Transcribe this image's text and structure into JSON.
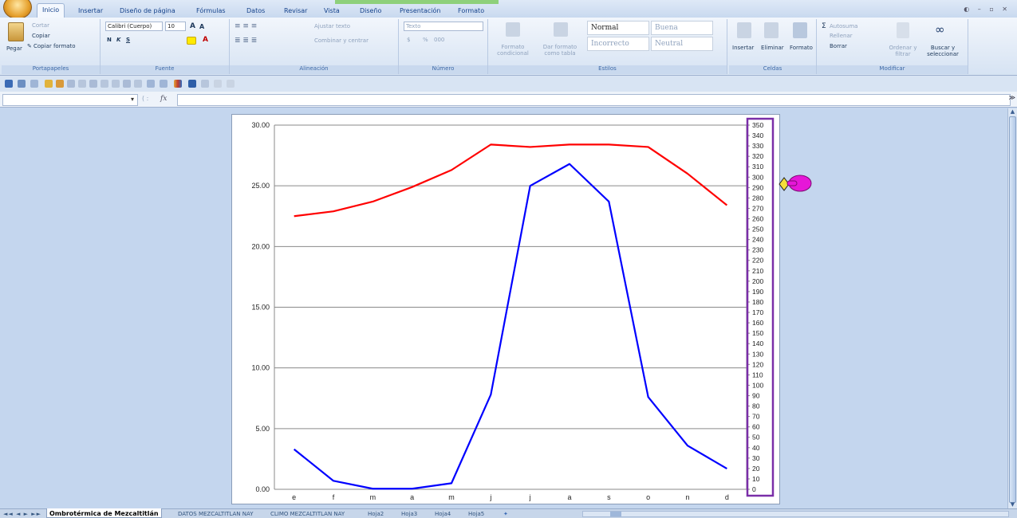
{
  "ribbon_tabs": [
    "Inicio",
    "Insertar",
    "Diseño de página",
    "Fórmulas",
    "Datos",
    "Revisar",
    "Vista",
    "Diseño",
    "Presentación",
    "Formato"
  ],
  "clipboard": {
    "paste": "Pegar",
    "cut": "Cortar",
    "copy": "Copiar",
    "format_painter": "Copiar formato",
    "label": "Portapapeles"
  },
  "font": {
    "name": "Calibri (Cuerpo)",
    "size": "10",
    "bold": "N",
    "italic": "K",
    "underline": "S",
    "grow": "A",
    "shrink": "A",
    "label": "Fuente"
  },
  "alignment": {
    "wrap": "Ajustar texto",
    "merge": "Combinar y centrar",
    "label": "Alineación"
  },
  "number": {
    "format": "Texto",
    "currency": "$",
    "percent": "%",
    "thousands": "000",
    "label": "Número"
  },
  "styles": {
    "conditional": "Formato condicional",
    "as_table": "Dar formato como tabla",
    "normal": "Normal",
    "good": "Buena",
    "bad": "Incorrecto",
    "neutral": "Neutral",
    "label": "Estilos"
  },
  "cells": {
    "insert": "Insertar",
    "delete": "Eliminar",
    "format": "Formato",
    "label": "Celdas"
  },
  "editing": {
    "autosum": "Autosuma",
    "fill": "Rellenar",
    "clear": "Borrar",
    "sort": "Ordenar y filtrar",
    "find": "Buscar y seleccionar",
    "label": "Modificar"
  },
  "formula_bar": {
    "name_box": "",
    "fx": "fx",
    "formula": ""
  },
  "sheet_tabs": [
    "Ombrotérmica de Mezcaltitlán",
    "DATOS MEZCALTITLAN NAY",
    "CLIMO MEZCALTITLAN NAY",
    "Hoja2",
    "Hoja3",
    "Hoja4",
    "Hoja5"
  ],
  "chart_data": {
    "type": "line",
    "categories": [
      "e",
      "f",
      "m",
      "a",
      "m",
      "j",
      "j",
      "a",
      "s",
      "o",
      "n",
      "d"
    ],
    "series": [
      {
        "name": "",
        "axis": "left",
        "color": "#ff0000",
        "values": [
          22.5,
          22.9,
          23.7,
          24.9,
          26.3,
          28.4,
          28.2,
          28.4,
          28.4,
          28.2,
          26.0,
          23.4
        ]
      },
      {
        "name": "",
        "axis": "left",
        "color": "#0000ff",
        "values": [
          3.3,
          0.7,
          0.05,
          0.05,
          0.5,
          7.8,
          25.0,
          26.8,
          23.7,
          7.6,
          3.6,
          1.7
        ]
      }
    ],
    "y_left": {
      "min": 0,
      "max": 30,
      "ticks": [
        "0.00",
        "5.00",
        "10.00",
        "15.00",
        "20.00",
        "25.00",
        "30.00"
      ]
    },
    "y_right": {
      "min": 0,
      "max": 350,
      "step": 10
    },
    "grid": true,
    "right_axis_highlight_color": "#7a2ea8"
  }
}
